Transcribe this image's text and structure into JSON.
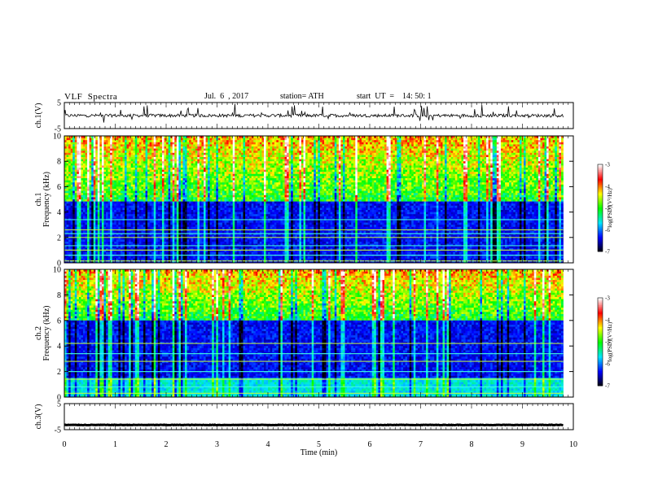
{
  "header": {
    "title": "VLF  Spectra",
    "date": "Jul.  6  , 2017",
    "station": "station= ATH",
    "start": "start  UT  =    14: 50: 1"
  },
  "chart_data": [
    {
      "type": "line",
      "panel": "ch1-waveform",
      "ylabel": "ch.1(V)",
      "ylim": [
        -5,
        5
      ],
      "yticks": [
        "5",
        "-5"
      ],
      "xlim": [
        0,
        10
      ],
      "x_extent_min": 9.8,
      "series": [
        {
          "values_mean": 0,
          "amplitude_note_V": 1.2,
          "color": "#000000"
        }
      ]
    },
    {
      "type": "heatmap",
      "panel": "ch1-spectrogram",
      "ylabel": "ch.1\nFrequency  (kHz)",
      "ylim_kHz": [
        0,
        10
      ],
      "yticks": [
        "0",
        "2",
        "4",
        "6",
        "8",
        "10"
      ],
      "xlim_min": [
        0,
        10
      ],
      "x_extent_min": 9.8,
      "colorbar": {
        "label": "log(PSD)(V²/Hz)",
        "range": [
          -7,
          -3
        ],
        "ticks": [
          "-3",
          "-4",
          "-5",
          "-6",
          "-7"
        ]
      },
      "low_band_max_kHz": 4.8,
      "persistent_lines_kHz": [
        0.15,
        0.6,
        1.0,
        1.35,
        2.0,
        2.3,
        2.6,
        3.4
      ]
    },
    {
      "type": "heatmap",
      "panel": "ch2-spectrogram",
      "ylabel": "ch.2\nFrequency  (kHz)",
      "ylim_kHz": [
        0,
        10
      ],
      "yticks": [
        "0",
        "2",
        "4",
        "6",
        "8",
        "10"
      ],
      "xlim_min": [
        0,
        10
      ],
      "x_extent_min": 9.8,
      "colorbar": {
        "label": "log(PSD)(V²/Hz)",
        "range": [
          -7,
          -3
        ],
        "ticks": [
          "-3",
          "-4",
          "-5",
          "-6",
          "-7"
        ]
      },
      "low_band_max_kHz": 6.0,
      "persistent_lines_kHz": [
        0.3,
        0.8,
        1.4,
        2.0,
        2.8,
        3.4,
        4.2
      ]
    },
    {
      "type": "line",
      "panel": "ch3-waveform",
      "ylabel": "ch.3(V)",
      "ylim": [
        -5,
        5
      ],
      "yticks": [
        "5",
        "-5"
      ],
      "xlim": [
        0,
        10
      ],
      "x_extent_min": 9.8,
      "series": [
        {
          "values_mean": -3.2,
          "amplitude_note_V": 0.2,
          "color": "#000000"
        }
      ]
    }
  ],
  "xaxis": {
    "label": "Time  (min)",
    "ticks": [
      "0",
      "1",
      "2",
      "3",
      "4",
      "5",
      "6",
      "7",
      "8",
      "9",
      "10"
    ]
  },
  "colors": {
    "colormap": [
      "#000000",
      "#0000ff",
      "#00e5ff",
      "#00ff00",
      "#ffff00",
      "#ff0000",
      "#ffffff"
    ]
  }
}
